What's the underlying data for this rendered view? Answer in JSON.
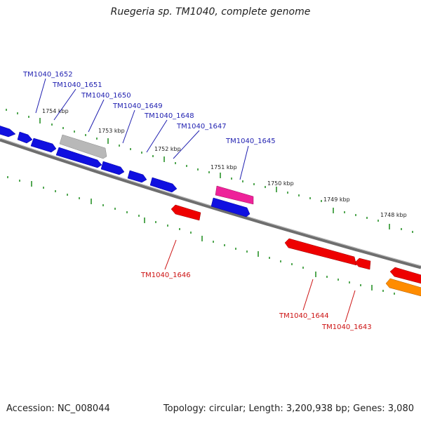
{
  "title": "Ruegeria sp. TM1040, complete genome",
  "footer": {
    "accession": "Accession: NC_008044",
    "summary": "Topology: circular; Length: 3,200,938 bp; Genes: 3,080"
  },
  "colors": {
    "backbone": "#777777",
    "tick": "#1a8a1a",
    "label_blue": "#1f1fb0",
    "label_red": "#cc1111",
    "gene_blue": "#1010e0",
    "gene_red": "#ee0000",
    "gene_gray": "#b8b8b8",
    "gene_pink": "#ee2299",
    "gene_orange": "#ff8c00"
  },
  "kbp_labels": [
    "1754 kbp",
    "1753 kbp",
    "1752 kbp",
    "1751 kbp",
    "1750 kbp",
    "1749 kbp",
    "1748 kbp"
  ],
  "gene_labels": [
    {
      "text": "TM1040_1652",
      "strand": "forward"
    },
    {
      "text": "TM1040_1651",
      "strand": "forward"
    },
    {
      "text": "TM1040_1650",
      "strand": "forward"
    },
    {
      "text": "TM1040_1649",
      "strand": "forward"
    },
    {
      "text": "TM1040_1648",
      "strand": "forward"
    },
    {
      "text": "TM1040_1647",
      "strand": "forward"
    },
    {
      "text": "TM1040_1645",
      "strand": "forward"
    },
    {
      "text": "TM1040_1646",
      "strand": "reverse"
    },
    {
      "text": "TM1040_1644",
      "strand": "reverse"
    },
    {
      "text": "TM1040_1643",
      "strand": "reverse"
    }
  ]
}
